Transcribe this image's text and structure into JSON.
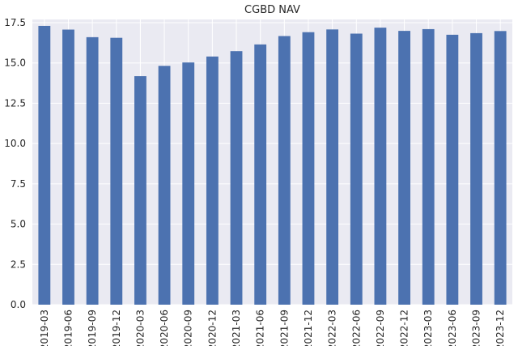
{
  "chart_data": {
    "type": "bar",
    "title": "CGBD NAV",
    "xlabel": "",
    "ylabel": "",
    "categories": [
      "2019-03",
      "2019-06",
      "2019-09",
      "2019-12",
      "2020-03",
      "2020-06",
      "2020-09",
      "2020-12",
      "2021-03",
      "2021-06",
      "2021-09",
      "2021-12",
      "2022-03",
      "2022-06",
      "2022-09",
      "2022-12",
      "2023-03",
      "2023-06",
      "2023-09",
      "2023-12"
    ],
    "values": [
      17.3,
      17.07,
      16.6,
      16.56,
      14.18,
      14.82,
      15.03,
      15.4,
      15.73,
      16.15,
      16.67,
      16.91,
      17.08,
      16.82,
      17.19,
      16.99,
      17.1,
      16.75,
      16.85,
      16.98
    ],
    "ylim": [
      0,
      17.7
    ],
    "yticks": [
      0.0,
      2.5,
      5.0,
      7.5,
      10.0,
      12.5,
      15.0,
      17.5
    ],
    "ytick_labels": [
      "0.0",
      "2.5",
      "5.0",
      "7.5",
      "10.0",
      "12.5",
      "15.0",
      "17.5"
    ],
    "grid": true,
    "colors": {
      "bar": "#4c72b0",
      "background": "#eaeaf2",
      "grid": "#ffffff",
      "text": "#262626"
    }
  }
}
